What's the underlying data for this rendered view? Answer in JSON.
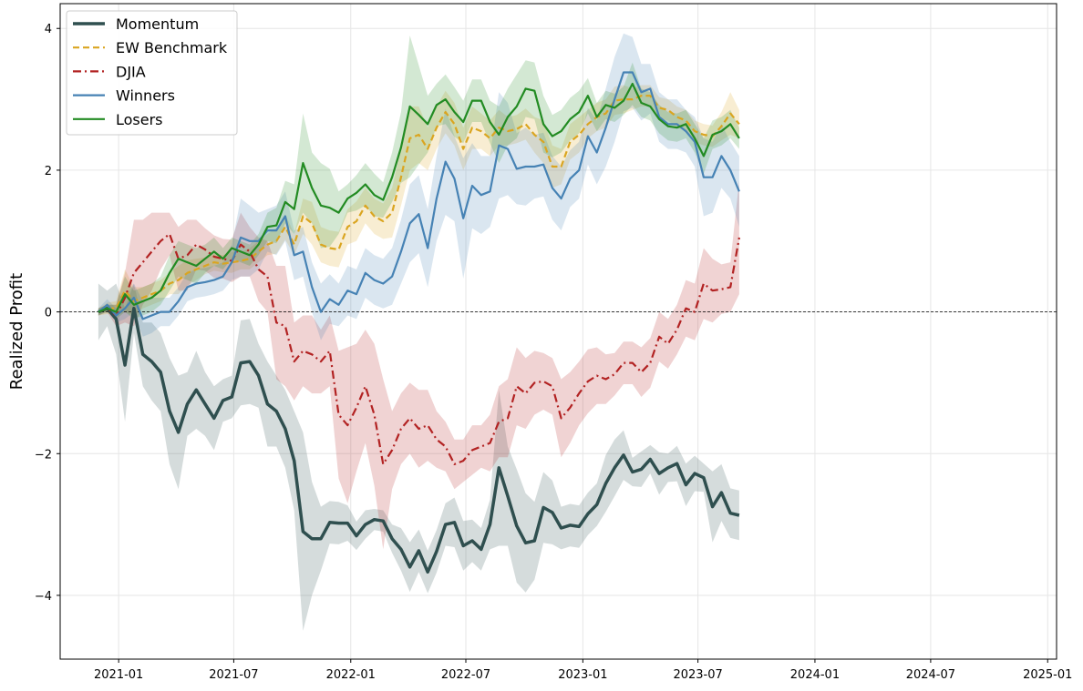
{
  "chart_data": {
    "type": "line",
    "title": "",
    "xlabel": "",
    "ylabel": "Realized Profit",
    "xlim": [
      "2020-10-01",
      "2025-01-15"
    ],
    "ylim": [
      -4.9,
      4.35
    ],
    "yticks": [
      -4,
      -2,
      0,
      2,
      4
    ],
    "ytick_labels": [
      "−4",
      "−2",
      "0",
      "2",
      "4"
    ],
    "xticks": [
      "2021-01-01",
      "2021-07-01",
      "2022-01-01",
      "2022-07-01",
      "2023-01-01",
      "2023-07-01",
      "2024-01-01",
      "2024-07-01",
      "2025-01-01"
    ],
    "xtick_labels": [
      "2021-01",
      "2021-07",
      "2022-01",
      "2022-07",
      "2023-01",
      "2023-07",
      "2024-01",
      "2024-07",
      "2025-01"
    ],
    "grid": true,
    "zero_line": true,
    "legend_position": "top-left",
    "x_start": "2020-11-30",
    "x_step_days": 14,
    "series": [
      {
        "name": "Momentum",
        "color": "#2f4f4f",
        "style": "solid",
        "values": [
          0,
          0.05,
          -0.1,
          -0.75,
          0.05,
          -0.6,
          -0.7,
          -0.85,
          -1.4,
          -1.7,
          -1.3,
          -1.1,
          -1.3,
          -1.5,
          -1.25,
          -1.2,
          -0.72,
          -0.7,
          -0.9,
          -1.3,
          -1.4,
          -1.65,
          -2.1,
          -3.1,
          -3.2,
          -3.2,
          -2.97,
          -2.98,
          -2.98,
          -3.16,
          -3.0,
          -2.93,
          -2.95,
          -3.2,
          -3.35,
          -3.6,
          -3.37,
          -3.67,
          -3.38,
          -3.0,
          -2.97,
          -3.3,
          -3.23,
          -3.35,
          -3.0,
          -2.2,
          -2.6,
          -3.02,
          -3.26,
          -3.23,
          -2.76,
          -2.83,
          -3.05,
          -3.01,
          -3.03,
          -2.85,
          -2.72,
          -2.42,
          -2.2,
          -2.02,
          -2.26,
          -2.22,
          -2.08,
          -2.28,
          -2.2,
          -2.14,
          -2.44,
          -2.28,
          -2.34,
          -2.75,
          -2.55,
          -2.84,
          -2.87
        ],
        "band": [
          0.4,
          0.25,
          0.5,
          0.8,
          0.35,
          0.45,
          0.55,
          0.55,
          0.75,
          0.8,
          0.45,
          0.55,
          0.45,
          0.45,
          0.3,
          0.3,
          0.6,
          0.6,
          0.45,
          0.6,
          0.5,
          0.55,
          0.7,
          1.4,
          0.8,
          0.45,
          0.3,
          0.3,
          0.25,
          0.2,
          0.2,
          0.15,
          0.15,
          0.2,
          0.3,
          0.35,
          0.3,
          0.3,
          0.3,
          0.3,
          0.35,
          0.35,
          0.3,
          0.3,
          0.35,
          1.1,
          0.7,
          0.8,
          0.7,
          0.55,
          0.5,
          0.45,
          0.3,
          0.3,
          0.3,
          0.3,
          0.3,
          0.4,
          0.4,
          0.35,
          0.2,
          0.25,
          0.2,
          0.3,
          0.2,
          0.25,
          0.3,
          0.25,
          0.2,
          0.5,
          0.4,
          0.35,
          0.35
        ]
      },
      {
        "name": "EW Benchmark",
        "color": "#daa520",
        "style": "dashed",
        "values": [
          0,
          0.05,
          0.05,
          0.3,
          0.15,
          0.2,
          0.25,
          0.3,
          0.4,
          0.45,
          0.55,
          0.6,
          0.65,
          0.7,
          0.68,
          0.7,
          0.72,
          0.75,
          0.85,
          0.95,
          1.0,
          1.2,
          0.95,
          1.35,
          1.25,
          0.95,
          0.9,
          0.88,
          1.2,
          1.28,
          1.5,
          1.35,
          1.28,
          1.4,
          1.9,
          2.45,
          2.5,
          2.3,
          2.6,
          2.82,
          2.65,
          2.3,
          2.6,
          2.55,
          2.45,
          2.6,
          2.55,
          2.58,
          2.65,
          2.5,
          2.4,
          2.05,
          2.05,
          2.4,
          2.5,
          2.65,
          2.75,
          2.8,
          2.98,
          3.0,
          3.0,
          3.05,
          3.05,
          2.88,
          2.85,
          2.75,
          2.7,
          2.55,
          2.5,
          2.48,
          2.62,
          2.8,
          2.65
        ],
        "band": [
          0.05,
          0.08,
          0.1,
          0.3,
          0.2,
          0.15,
          0.15,
          0.15,
          0.15,
          0.2,
          0.18,
          0.15,
          0.12,
          0.12,
          0.12,
          0.15,
          0.12,
          0.15,
          0.15,
          0.15,
          0.18,
          0.18,
          0.15,
          0.25,
          0.3,
          0.25,
          0.25,
          0.25,
          0.25,
          0.28,
          0.25,
          0.25,
          0.25,
          0.35,
          0.4,
          0.45,
          0.4,
          0.3,
          0.3,
          0.3,
          0.3,
          0.3,
          0.3,
          0.25,
          0.25,
          0.25,
          0.2,
          0.2,
          0.22,
          0.25,
          0.3,
          0.3,
          0.25,
          0.25,
          0.25,
          0.2,
          0.2,
          0.2,
          0.2,
          0.2,
          0.15,
          0.15,
          0.15,
          0.15,
          0.15,
          0.15,
          0.15,
          0.15,
          0.15,
          0.15,
          0.2,
          0.3,
          0.2
        ]
      },
      {
        "name": "DJIA",
        "color": "#b22222",
        "style": "dashdot",
        "values": [
          0,
          0.05,
          -0.05,
          0.2,
          0.55,
          0.7,
          0.85,
          1.0,
          1.1,
          0.75,
          0.8,
          0.95,
          0.88,
          0.78,
          0.75,
          0.72,
          0.95,
          0.85,
          0.6,
          0.5,
          -0.15,
          -0.2,
          -0.7,
          -0.55,
          -0.6,
          -0.7,
          -0.55,
          -1.45,
          -1.6,
          -1.35,
          -1.05,
          -1.45,
          -2.15,
          -1.95,
          -1.65,
          -1.5,
          -1.65,
          -1.6,
          -1.8,
          -1.9,
          -2.15,
          -2.1,
          -1.95,
          -1.9,
          -1.85,
          -1.55,
          -1.5,
          -1.05,
          -1.15,
          -1.0,
          -0.98,
          -1.05,
          -1.5,
          -1.35,
          -1.15,
          -0.98,
          -0.9,
          -0.95,
          -0.88,
          -0.72,
          -0.72,
          -0.85,
          -0.72,
          -0.35,
          -0.45,
          -0.25,
          0.05,
          0.0,
          0.4,
          0.3,
          0.32,
          0.35,
          1.05
        ],
        "band": [
          0.05,
          0.05,
          0.15,
          0.35,
          0.75,
          0.6,
          0.55,
          0.4,
          0.3,
          0.45,
          0.5,
          0.35,
          0.3,
          0.3,
          0.28,
          0.3,
          0.45,
          0.35,
          0.45,
          0.5,
          0.8,
          0.85,
          0.55,
          0.5,
          0.55,
          0.45,
          0.5,
          0.9,
          1.1,
          0.9,
          0.8,
          1.0,
          1.2,
          0.55,
          0.5,
          0.5,
          0.55,
          0.5,
          0.4,
          0.35,
          0.35,
          0.3,
          0.35,
          0.3,
          0.4,
          0.5,
          0.55,
          0.55,
          0.5,
          0.45,
          0.4,
          0.4,
          0.55,
          0.5,
          0.45,
          0.45,
          0.4,
          0.35,
          0.3,
          0.3,
          0.3,
          0.35,
          0.35,
          0.35,
          0.35,
          0.35,
          0.4,
          0.4,
          0.5,
          0.45,
          0.35,
          0.35,
          0.8
        ]
      },
      {
        "name": "Winners",
        "color": "#4682b4",
        "style": "solid",
        "values": [
          0,
          0.1,
          -0.05,
          0.05,
          0.2,
          -0.1,
          -0.05,
          0.0,
          0.0,
          0.15,
          0.35,
          0.4,
          0.42,
          0.45,
          0.5,
          0.7,
          1.05,
          1.0,
          1.0,
          1.15,
          1.15,
          1.35,
          0.8,
          0.85,
          0.35,
          0.0,
          0.18,
          0.1,
          0.3,
          0.25,
          0.55,
          0.45,
          0.4,
          0.5,
          0.85,
          1.25,
          1.38,
          0.9,
          1.6,
          2.12,
          1.88,
          1.32,
          1.78,
          1.65,
          1.7,
          2.35,
          2.3,
          2.02,
          2.05,
          2.05,
          2.08,
          1.75,
          1.6,
          1.88,
          2.0,
          2.48,
          2.25,
          2.6,
          3.0,
          3.38,
          3.38,
          3.1,
          3.15,
          2.75,
          2.65,
          2.65,
          2.55,
          2.4,
          1.9,
          1.9,
          2.2,
          2.0,
          1.7
        ],
        "band": [
          0.05,
          0.08,
          0.1,
          0.15,
          0.2,
          0.25,
          0.25,
          0.2,
          0.2,
          0.2,
          0.2,
          0.2,
          0.2,
          0.2,
          0.2,
          0.25,
          0.55,
          0.5,
          0.4,
          0.3,
          0.35,
          0.35,
          0.35,
          0.35,
          0.35,
          0.4,
          0.35,
          0.3,
          0.35,
          0.35,
          0.35,
          0.35,
          0.35,
          0.4,
          0.45,
          0.55,
          0.55,
          0.55,
          0.6,
          0.75,
          0.6,
          0.85,
          0.6,
          0.55,
          0.5,
          0.75,
          0.65,
          0.5,
          0.55,
          0.45,
          0.45,
          0.45,
          0.45,
          0.4,
          0.4,
          0.4,
          0.45,
          0.55,
          0.6,
          0.55,
          0.5,
          0.4,
          0.35,
          0.35,
          0.35,
          0.35,
          0.3,
          0.35,
          0.55,
          0.5,
          0.45,
          0.4,
          0.5
        ]
      },
      {
        "name": "Losers",
        "color": "#228b22",
        "style": "solid",
        "values": [
          0,
          0.05,
          0.0,
          0.25,
          0.1,
          0.15,
          0.2,
          0.3,
          0.55,
          0.75,
          0.7,
          0.65,
          0.75,
          0.85,
          0.75,
          0.9,
          0.85,
          0.8,
          0.95,
          1.2,
          1.22,
          1.55,
          1.45,
          2.1,
          1.75,
          1.5,
          1.47,
          1.4,
          1.6,
          1.68,
          1.8,
          1.65,
          1.58,
          1.9,
          2.32,
          2.9,
          2.78,
          2.65,
          2.92,
          3.0,
          2.82,
          2.68,
          2.98,
          2.98,
          2.68,
          2.5,
          2.75,
          2.9,
          3.15,
          3.12,
          2.65,
          2.48,
          2.55,
          2.72,
          2.82,
          3.05,
          2.75,
          2.92,
          2.88,
          2.98,
          3.22,
          2.95,
          2.9,
          2.72,
          2.62,
          2.6,
          2.65,
          2.45,
          2.2,
          2.5,
          2.55,
          2.65,
          2.45
        ],
        "band": [
          0.05,
          0.05,
          0.1,
          0.25,
          0.2,
          0.2,
          0.2,
          0.2,
          0.25,
          0.25,
          0.25,
          0.25,
          0.2,
          0.2,
          0.15,
          0.15,
          0.15,
          0.15,
          0.15,
          0.2,
          0.25,
          0.3,
          0.35,
          0.7,
          0.5,
          0.6,
          0.55,
          0.3,
          0.2,
          0.25,
          0.3,
          0.3,
          0.25,
          0.35,
          0.5,
          1.0,
          0.7,
          0.4,
          0.3,
          0.35,
          0.35,
          0.3,
          0.3,
          0.3,
          0.3,
          0.4,
          0.4,
          0.45,
          0.4,
          0.4,
          0.4,
          0.3,
          0.3,
          0.3,
          0.3,
          0.25,
          0.2,
          0.2,
          0.2,
          0.2,
          0.3,
          0.2,
          0.2,
          0.2,
          0.2,
          0.2,
          0.2,
          0.2,
          0.25,
          0.2,
          0.2,
          0.2,
          0.15
        ]
      }
    ]
  }
}
